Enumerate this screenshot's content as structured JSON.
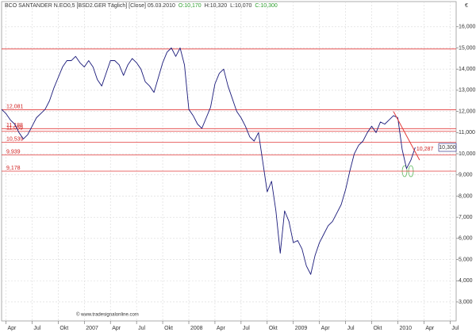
{
  "chart_data": {
    "type": "line",
    "title": "BCO SANTANDER N.EO0,5 [BSD2.GER  Täglich] [Close] 05.03.2010",
    "ohlc": [
      "O:10,170",
      "H:10,320",
      "L:10,070",
      "C:10,300"
    ],
    "watermark": "© www.tradesignalonline.com",
    "currency": "€",
    "current_price_label": "10,300",
    "categories": [
      null,
      "Apr",
      null,
      null,
      null,
      null,
      null,
      "Jul",
      null,
      null,
      null,
      null,
      null,
      "Okt",
      null,
      null,
      null,
      null,
      null,
      "2007",
      null,
      null,
      null,
      null,
      null,
      "Apr",
      null,
      null,
      null,
      null,
      null,
      "Jul",
      null,
      null,
      null,
      null,
      null,
      "Okt",
      null,
      null,
      null,
      null,
      null,
      "2008",
      null,
      null,
      null,
      null,
      null,
      "Apr",
      null,
      null,
      null,
      null,
      null,
      "Jul",
      null,
      null,
      null,
      null,
      null,
      "Okt",
      null,
      null,
      null,
      null,
      null,
      "2009",
      null,
      null,
      null,
      null,
      null,
      "Apr",
      null,
      null,
      null,
      null,
      null,
      "Jul",
      null,
      null,
      null,
      null,
      null,
      "Okt",
      null,
      null,
      null,
      null,
      null,
      "2010",
      null,
      null,
      null,
      null,
      null,
      "Apr",
      null,
      null,
      null,
      null,
      null,
      "Jul",
      null
    ],
    "series": [
      {
        "name": "BCO SANTANDER",
        "color": "#1a1a7a",
        "values": [
          12100,
          11900,
          11600,
          11400,
          11000,
          10700,
          10900,
          11300,
          11700,
          11900,
          12100,
          12500,
          13100,
          13600,
          14100,
          14400,
          14400,
          14600,
          14300,
          14100,
          14400,
          14100,
          13500,
          13200,
          13800,
          14400,
          14400,
          14200,
          13700,
          14200,
          14500,
          14300,
          14000,
          13400,
          13200,
          12900,
          13600,
          14300,
          14800,
          15000,
          14600,
          15000,
          14200,
          12100,
          11800,
          11400,
          11200,
          11700,
          12200,
          13300,
          13800,
          14000,
          13200,
          12600,
          12000,
          11700,
          11300,
          10800,
          10600,
          11000,
          9600,
          8200,
          8700,
          7300,
          5300,
          7300,
          6800,
          5800,
          5900,
          5500,
          4700,
          4300,
          5200,
          5800,
          6200,
          6600,
          6800,
          7200,
          7600,
          8300,
          9200,
          10000,
          10400,
          10600,
          11000,
          11300,
          11000,
          11500,
          11400,
          11600,
          11800,
          11700,
          10200,
          9300,
          9700,
          10300,
          null,
          null,
          null,
          null,
          null,
          null,
          null,
          null,
          null
        ]
      }
    ],
    "levels": [
      {
        "value": 14950
      },
      {
        "value": 12081,
        "label": "12,081"
      },
      {
        "value": 11188,
        "label": "11,188"
      },
      {
        "value": 11059,
        "label": "11,059"
      },
      {
        "value": 10539,
        "label": "10,539"
      },
      {
        "value": 9939,
        "label": "9,939"
      },
      {
        "value": 9178,
        "label": "9,178"
      }
    ],
    "trendline": {
      "from": {
        "slot": 90,
        "value": 12000
      },
      "to": {
        "slot": 96,
        "value": 9700
      },
      "label": "10,287"
    },
    "ylim": [
      2100,
      17190
    ],
    "yticks": [
      {
        "value": 3000,
        "label": "3,000"
      },
      {
        "value": 4000,
        "label": "4,000"
      },
      {
        "value": 5000,
        "label": "5,000"
      },
      {
        "value": 6000,
        "label": "6,000"
      },
      {
        "value": 7000,
        "label": "7,000"
      },
      {
        "value": 8000,
        "label": "8,000"
      },
      {
        "value": 9000,
        "label": "9,000"
      },
      {
        "value": 10000,
        "label": "10,000"
      },
      {
        "value": 11000,
        "label": "11,000"
      },
      {
        "value": 12000,
        "label": "12,000"
      },
      {
        "value": 13000,
        "label": "13,000"
      },
      {
        "value": 14000,
        "label": "14,000"
      },
      {
        "value": 15000,
        "label": "15,000"
      },
      {
        "value": 16000,
        "label": "16,000"
      }
    ],
    "grid": true
  }
}
